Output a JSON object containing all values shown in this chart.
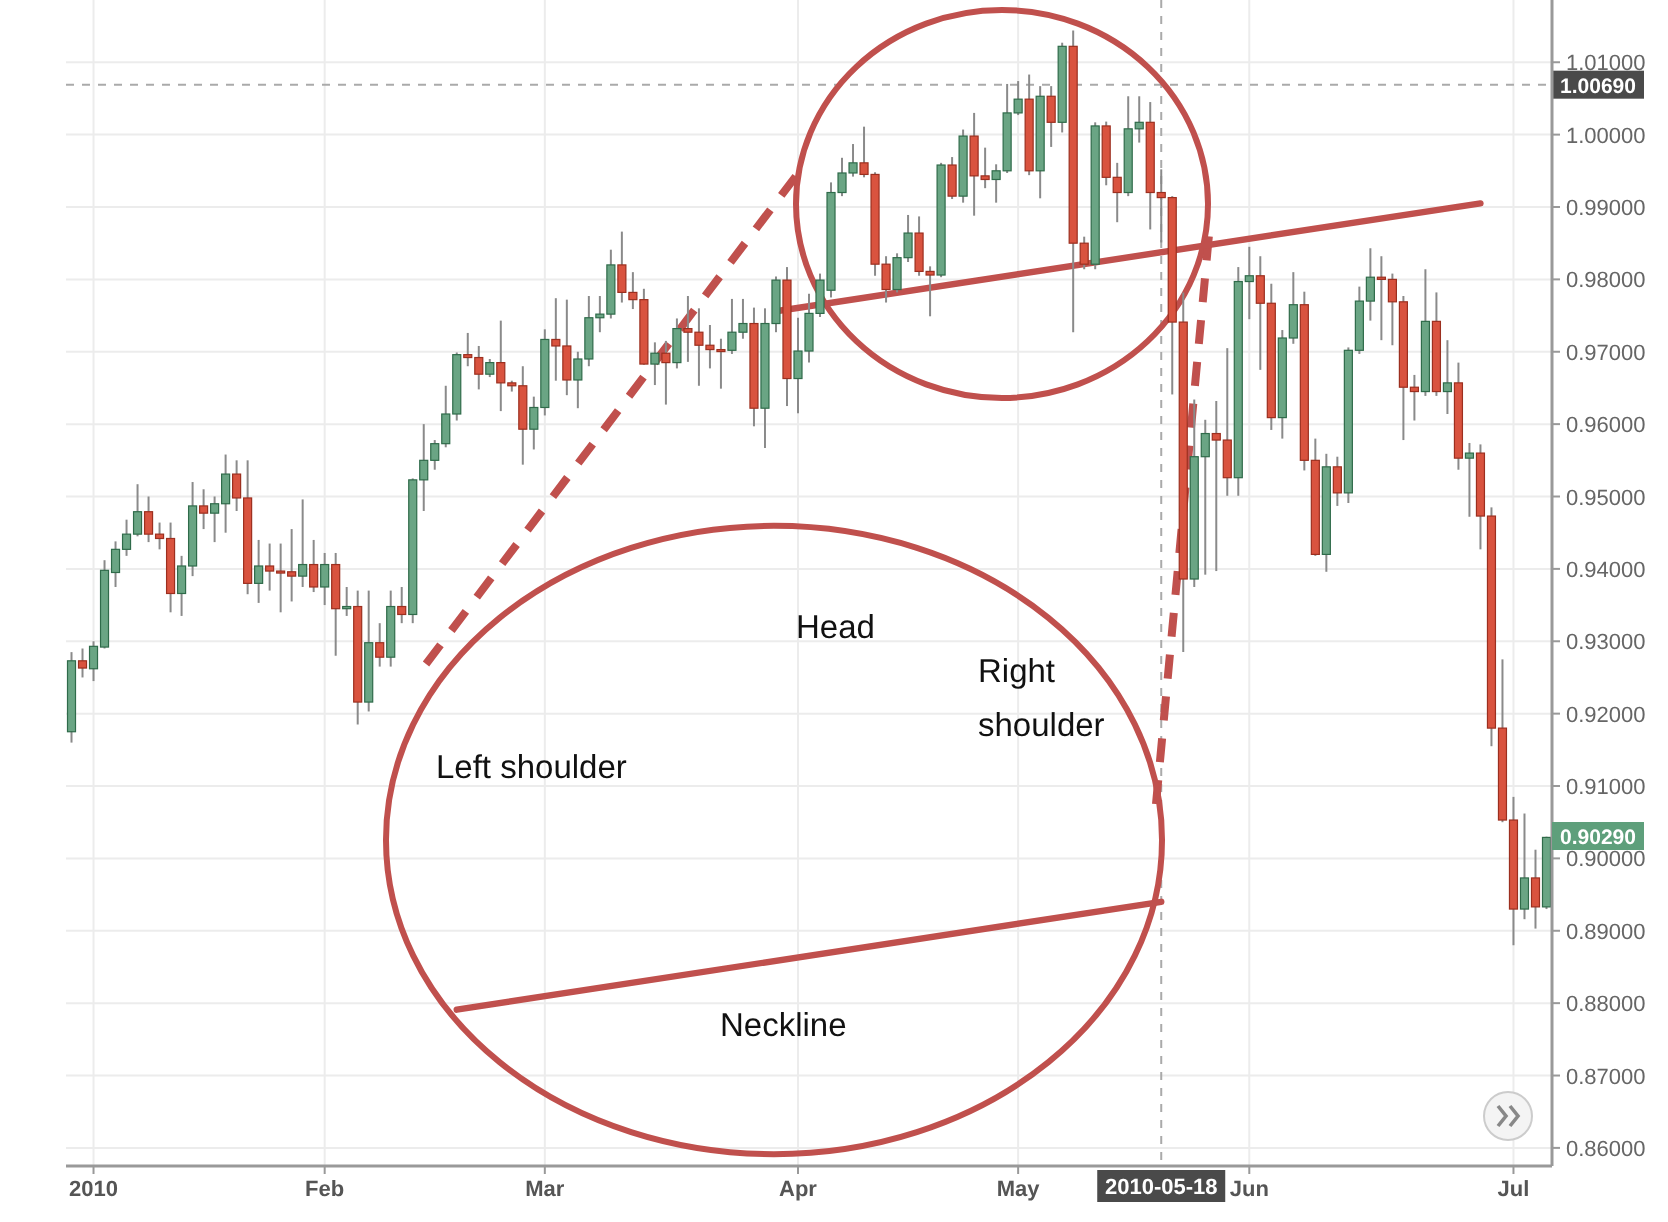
{
  "chart_data": {
    "type": "candlestick",
    "categories": [
      null,
      null,
      "2010",
      null,
      null,
      null,
      null,
      null,
      null,
      null,
      null,
      null,
      null,
      null,
      null,
      null,
      null,
      null,
      null,
      null,
      null,
      null,
      null,
      "Feb",
      null,
      null,
      null,
      null,
      null,
      null,
      null,
      null,
      null,
      null,
      null,
      null,
      null,
      null,
      null,
      null,
      null,
      null,
      null,
      "Mar",
      null,
      null,
      null,
      null,
      null,
      null,
      null,
      null,
      null,
      null,
      null,
      null,
      null,
      null,
      null,
      null,
      null,
      null,
      null,
      null,
      null,
      null,
      "Apr",
      null,
      null,
      null,
      null,
      null,
      null,
      null,
      null,
      null,
      null,
      null,
      null,
      null,
      null,
      null,
      null,
      null,
      null,
      null,
      "May",
      null,
      null,
      null,
      null,
      null,
      null,
      null,
      null,
      null,
      null,
      null,
      null,
      "2010-05-18",
      null,
      null,
      null,
      null,
      null,
      null,
      null,
      "Jun",
      null,
      null,
      null,
      null,
      null,
      null,
      null,
      null,
      null,
      null,
      null,
      null,
      null,
      null,
      null,
      null,
      null,
      null,
      null,
      null,
      null,
      null,
      null,
      "Jul",
      null,
      null,
      null
    ],
    "ohlc": [
      [
        0.9175,
        0.9285,
        0.916,
        0.9273
      ],
      [
        0.9273,
        0.929,
        0.925,
        0.9263
      ],
      [
        0.9262,
        0.93,
        0.9245,
        0.9293
      ],
      [
        0.9292,
        0.9412,
        0.929,
        0.9398
      ],
      [
        0.9395,
        0.9438,
        0.9375,
        0.9427
      ],
      [
        0.9427,
        0.9468,
        0.9418,
        0.9448
      ],
      [
        0.9448,
        0.9517,
        0.9445,
        0.9479
      ],
      [
        0.9479,
        0.95,
        0.9437,
        0.9448
      ],
      [
        0.9448,
        0.9464,
        0.9427,
        0.9442
      ],
      [
        0.9442,
        0.9464,
        0.934,
        0.9366
      ],
      [
        0.9366,
        0.9418,
        0.9335,
        0.9404
      ],
      [
        0.9404,
        0.952,
        0.939,
        0.9487
      ],
      [
        0.9487,
        0.951,
        0.9455,
        0.9477
      ],
      [
        0.9477,
        0.95,
        0.9437,
        0.949
      ],
      [
        0.949,
        0.9558,
        0.945,
        0.9531
      ],
      [
        0.9531,
        0.955,
        0.948,
        0.9498
      ],
      [
        0.9498,
        0.955,
        0.9365,
        0.938
      ],
      [
        0.938,
        0.944,
        0.9353,
        0.9404
      ],
      [
        0.9404,
        0.9435,
        0.937,
        0.9397
      ],
      [
        0.9397,
        0.9435,
        0.934,
        0.9396
      ],
      [
        0.9396,
        0.9455,
        0.9355,
        0.939
      ],
      [
        0.939,
        0.9496,
        0.9375,
        0.9406
      ],
      [
        0.9406,
        0.944,
        0.9368,
        0.9375
      ],
      [
        0.9375,
        0.9422,
        0.935,
        0.9406
      ],
      [
        0.9406,
        0.9422,
        0.928,
        0.9345
      ],
      [
        0.9345,
        0.9375,
        0.9335,
        0.9348
      ],
      [
        0.9348,
        0.937,
        0.9185,
        0.9216
      ],
      [
        0.9216,
        0.937,
        0.9203,
        0.9298
      ],
      [
        0.9298,
        0.9325,
        0.9265,
        0.9278
      ],
      [
        0.9278,
        0.937,
        0.9265,
        0.9348
      ],
      [
        0.9348,
        0.9375,
        0.9325,
        0.9337
      ],
      [
        0.9337,
        0.9525,
        0.9325,
        0.9523
      ],
      [
        0.9523,
        0.96,
        0.948,
        0.955
      ],
      [
        0.955,
        0.9578,
        0.9537,
        0.9573
      ],
      [
        0.9573,
        0.9653,
        0.9568,
        0.9614
      ],
      [
        0.9614,
        0.9699,
        0.9605,
        0.9696
      ],
      [
        0.9696,
        0.9726,
        0.968,
        0.9692
      ],
      [
        0.9692,
        0.9708,
        0.9648,
        0.9669
      ],
      [
        0.9669,
        0.969,
        0.9665,
        0.9685
      ],
      [
        0.9685,
        0.9743,
        0.9618,
        0.9657
      ],
      [
        0.9657,
        0.966,
        0.9645,
        0.9653
      ],
      [
        0.9653,
        0.968,
        0.9544,
        0.9593
      ],
      [
        0.9593,
        0.9638,
        0.9565,
        0.9623
      ],
      [
        0.9623,
        0.9731,
        0.9612,
        0.9717
      ],
      [
        0.9717,
        0.9774,
        0.966,
        0.9708
      ],
      [
        0.9708,
        0.9772,
        0.964,
        0.9661
      ],
      [
        0.9661,
        0.97,
        0.9622,
        0.969
      ],
      [
        0.969,
        0.9777,
        0.968,
        0.9747
      ],
      [
        0.9747,
        0.9777,
        0.9727,
        0.9752
      ],
      [
        0.9752,
        0.9841,
        0.9746,
        0.982
      ],
      [
        0.982,
        0.9866,
        0.9768,
        0.9782
      ],
      [
        0.9782,
        0.981,
        0.9759,
        0.9772
      ],
      [
        0.9772,
        0.9787,
        0.9682,
        0.9683
      ],
      [
        0.9683,
        0.9713,
        0.9654,
        0.9698
      ],
      [
        0.9698,
        0.9715,
        0.9627,
        0.9685
      ],
      [
        0.9685,
        0.9746,
        0.9677,
        0.9732
      ],
      [
        0.9732,
        0.9777,
        0.9686,
        0.9727
      ],
      [
        0.9727,
        0.976,
        0.9653,
        0.9709
      ],
      [
        0.9709,
        0.9737,
        0.9677,
        0.9703
      ],
      [
        0.9703,
        0.9718,
        0.9649,
        0.9702
      ],
      [
        0.9702,
        0.9773,
        0.9697,
        0.9727
      ],
      [
        0.9727,
        0.9773,
        0.9718,
        0.9739
      ],
      [
        0.9739,
        0.9761,
        0.9597,
        0.9622
      ],
      [
        0.9622,
        0.976,
        0.9567,
        0.9739
      ],
      [
        0.9739,
        0.9804,
        0.9727,
        0.9799
      ],
      [
        0.9799,
        0.9817,
        0.9625,
        0.9663
      ],
      [
        0.9663,
        0.9747,
        0.9615,
        0.9701
      ],
      [
        0.9701,
        0.978,
        0.9685,
        0.9753
      ],
      [
        0.9753,
        0.9808,
        0.9748,
        0.9799
      ],
      [
        0.9785,
        0.9934,
        0.9775,
        0.992
      ],
      [
        0.992,
        0.9968,
        0.9915,
        0.9947
      ],
      [
        0.9947,
        0.9987,
        0.9942,
        0.9961
      ],
      [
        0.9961,
        1.0011,
        0.9941,
        0.9945
      ],
      [
        0.9945,
        0.9948,
        0.9805,
        0.9821
      ],
      [
        0.9821,
        0.9832,
        0.9768,
        0.9786
      ],
      [
        0.9786,
        0.9836,
        0.9782,
        0.983
      ],
      [
        0.983,
        0.9889,
        0.9824,
        0.9864
      ],
      [
        0.9864,
        0.9887,
        0.9805,
        0.9811
      ],
      [
        0.9811,
        0.9818,
        0.9749,
        0.9806
      ],
      [
        0.9806,
        0.9961,
        0.9803,
        0.9958
      ],
      [
        0.9958,
        0.9969,
        0.9911,
        0.9915
      ],
      [
        0.9915,
        1.0007,
        0.9906,
        0.9998
      ],
      [
        0.9998,
        1.003,
        0.9888,
        0.9943
      ],
      [
        0.9943,
        0.9982,
        0.9926,
        0.9938
      ],
      [
        0.9938,
        0.9959,
        0.9906,
        0.995
      ],
      [
        0.995,
        1.007,
        0.9947,
        1.003
      ],
      [
        1.003,
        1.0074,
        1.0027,
        1.0049
      ],
      [
        1.0049,
        1.0083,
        0.9944,
        0.995
      ],
      [
        0.995,
        1.0067,
        0.9912,
        1.0053
      ],
      [
        1.0053,
        1.0067,
        0.9983,
        1.0017
      ],
      [
        1.0017,
        1.0127,
        1.0003,
        1.0122
      ],
      [
        1.0122,
        1.0144,
        0.9727,
        0.985
      ],
      [
        0.985,
        0.9859,
        0.9814,
        0.9821
      ],
      [
        0.9821,
        1.0017,
        0.9814,
        1.0012
      ],
      [
        1.0012,
        1.0018,
        0.993,
        0.9941
      ],
      [
        0.9941,
        0.9961,
        0.9879,
        0.992
      ],
      [
        0.992,
        1.0053,
        0.9915,
        1.0008
      ],
      [
        1.0008,
        1.0053,
        0.9989,
        1.0017
      ],
      [
        1.0017,
        1.0045,
        0.9869,
        0.992
      ],
      [
        0.992,
        0.9952,
        0.9851,
        0.9913
      ],
      [
        0.9913,
        0.9915,
        0.9641,
        0.9741
      ],
      [
        0.9741,
        0.9782,
        0.9285,
        0.9386
      ],
      [
        0.9386,
        0.9634,
        0.9375,
        0.9555
      ],
      [
        0.9555,
        0.9606,
        0.9392,
        0.9587
      ],
      [
        0.9587,
        0.9632,
        0.9397,
        0.9578
      ],
      [
        0.9578,
        0.9705,
        0.9501,
        0.9526
      ],
      [
        0.9526,
        0.9817,
        0.9501,
        0.9797
      ],
      [
        0.9797,
        0.9845,
        0.9745,
        0.9805
      ],
      [
        0.9805,
        0.9832,
        0.9675,
        0.9767
      ],
      [
        0.9767,
        0.9794,
        0.9592,
        0.9609
      ],
      [
        0.9609,
        0.973,
        0.958,
        0.9719
      ],
      [
        0.9719,
        0.981,
        0.9711,
        0.9765
      ],
      [
        0.9765,
        0.9783,
        0.9536,
        0.955
      ],
      [
        0.955,
        0.958,
        0.9418,
        0.942
      ],
      [
        0.942,
        0.9559,
        0.9396,
        0.9541
      ],
      [
        0.9541,
        0.9555,
        0.9487,
        0.9505
      ],
      [
        0.9505,
        0.9706,
        0.9491,
        0.9702
      ],
      [
        0.9702,
        0.979,
        0.9697,
        0.977
      ],
      [
        0.977,
        0.9843,
        0.9743,
        0.9803
      ],
      [
        0.9803,
        0.9832,
        0.9716,
        0.98
      ],
      [
        0.98,
        0.9808,
        0.9709,
        0.9769
      ],
      [
        0.9769,
        0.9777,
        0.9578,
        0.9651
      ],
      [
        0.9651,
        0.9668,
        0.9605,
        0.9645
      ],
      [
        0.9645,
        0.9814,
        0.9639,
        0.9742
      ],
      [
        0.9742,
        0.9782,
        0.9639,
        0.9645
      ],
      [
        0.9645,
        0.9716,
        0.9614,
        0.9657
      ],
      [
        0.9657,
        0.9685,
        0.9537,
        0.9553
      ],
      [
        0.9553,
        0.9574,
        0.9472,
        0.956
      ],
      [
        0.956,
        0.9572,
        0.9427,
        0.9473
      ],
      [
        0.9473,
        0.9485,
        0.9155,
        0.918
      ],
      [
        0.918,
        0.9275,
        0.905,
        0.9053
      ],
      [
        0.9053,
        0.9085,
        0.888,
        0.893
      ],
      [
        0.893,
        0.9062,
        0.8916,
        0.8973
      ],
      [
        0.8973,
        0.9012,
        0.8903,
        0.8933
      ],
      [
        0.8933,
        0.903,
        0.893,
        0.9029
      ]
    ],
    "series": [
      {
        "type": "line",
        "color": "#c0504d",
        "values": [
          null,
          null,
          null,
          null,
          null,
          null,
          null,
          null,
          null,
          null,
          null,
          null,
          null,
          null,
          null,
          null,
          null,
          null,
          null,
          null,
          null,
          null,
          null,
          null,
          null,
          null,
          null,
          null,
          null,
          null,
          null,
          null,
          null,
          null,
          null,
          null,
          null,
          null,
          null,
          null,
          null,
          null,
          null,
          null,
          null,
          null,
          null,
          null,
          null,
          null,
          null,
          null,
          null,
          null,
          null,
          null,
          null,
          null,
          null,
          null,
          null,
          null,
          null,
          null,
          0.9756,
          null,
          null,
          null,
          null,
          null,
          null,
          null,
          null,
          null,
          null,
          null,
          null,
          null,
          null,
          null,
          null,
          null,
          null,
          null,
          null,
          null,
          null,
          null,
          null,
          null,
          null,
          null,
          null,
          null,
          null,
          null,
          null,
          null,
          null,
          null,
          null,
          null,
          null,
          null,
          null,
          null,
          null,
          null,
          null,
          null,
          null,
          null,
          null,
          null,
          null,
          null,
          null,
          null,
          null,
          null,
          null,
          null,
          null,
          null,
          null,
          null,
          null,
          null,
          0.9905,
          null,
          null,
          null,
          null,
          null,
          null
        ]
      },
      {
        "type": "line",
        "color": "#c0504d",
        "values": [
          null,
          null,
          null,
          null,
          null,
          null,
          null,
          null,
          null,
          null,
          null,
          null,
          null,
          null,
          null,
          null,
          null,
          null,
          null,
          null,
          null,
          null,
          null,
          null,
          null,
          null,
          null,
          null,
          null,
          null,
          null,
          null,
          null,
          null,
          null,
          0.8791,
          null,
          null,
          null,
          null,
          null,
          null,
          null,
          null,
          null,
          null,
          null,
          null,
          null,
          null,
          null,
          null,
          null,
          null,
          null,
          null,
          null,
          null,
          null,
          null,
          null,
          null,
          null,
          null,
          null,
          null,
          null,
          null,
          null,
          null,
          null,
          null,
          null,
          null,
          null,
          null,
          null,
          null,
          null,
          null,
          null,
          null,
          null,
          null,
          null,
          null,
          null,
          null,
          null,
          null,
          null,
          null,
          null,
          null,
          null,
          null,
          null,
          null,
          null,
          0.894,
          null,
          null,
          null,
          null,
          null,
          null,
          null,
          null,
          null,
          null,
          null,
          null,
          null,
          null,
          null,
          null,
          null,
          null,
          null,
          null,
          null,
          null,
          null,
          null,
          null,
          null,
          null,
          null,
          null,
          null,
          null,
          null,
          null,
          null,
          null
        ]
      }
    ],
    "ylim": [
      0.8575,
      1.0186
    ],
    "yticks": [
      {
        "value": 0.86,
        "label": "0.86000"
      },
      {
        "value": 0.87,
        "label": "0.87000"
      },
      {
        "value": 0.88,
        "label": "0.88000"
      },
      {
        "value": 0.89,
        "label": "0.89000"
      },
      {
        "value": 0.9,
        "label": "0.90000"
      },
      {
        "value": 0.91,
        "label": "0.91000"
      },
      {
        "value": 0.92,
        "label": "0.92000"
      },
      {
        "value": 0.93,
        "label": "0.93000"
      },
      {
        "value": 0.94,
        "label": "0.94000"
      },
      {
        "value": 0.95,
        "label": "0.95000"
      },
      {
        "value": 0.96,
        "label": "0.96000"
      },
      {
        "value": 0.97,
        "label": "0.97000"
      },
      {
        "value": 0.98,
        "label": "0.98000"
      },
      {
        "value": 0.99,
        "label": "0.99000"
      },
      {
        "value": 1.0,
        "label": "1.00000"
      },
      {
        "value": 1.01,
        "label": "1.01000"
      }
    ],
    "grid": true,
    "ref_lines": [
      {
        "axis": "y",
        "value": 1.0069,
        "label": "1.00690",
        "line_style": "dashed"
      },
      {
        "axis": "x",
        "value": "2010-05-18",
        "line_style": "dashed"
      }
    ],
    "annotations": [
      "Left shoulder",
      "Head",
      "Right shoulder",
      "Neckline",
      "0.90290"
    ]
  }
}
